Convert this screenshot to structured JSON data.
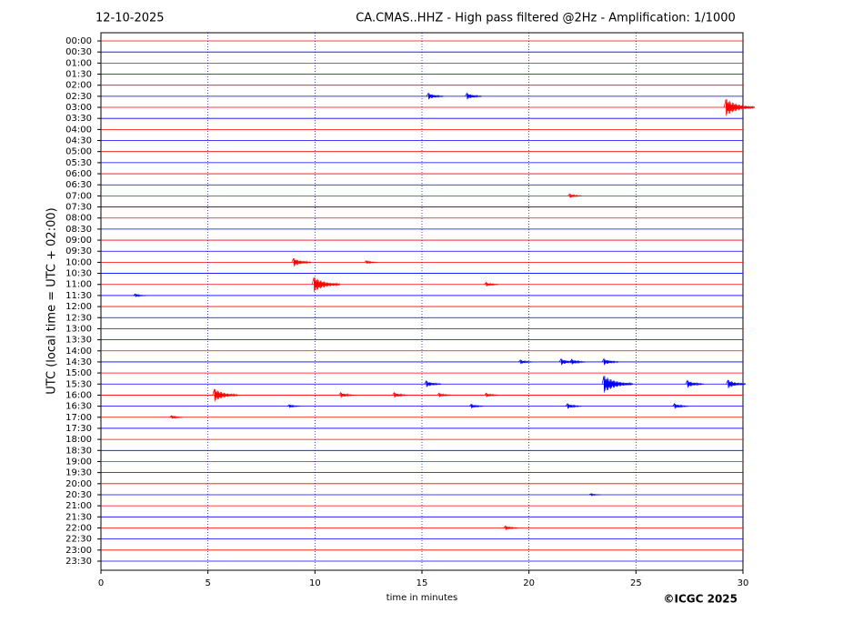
{
  "chart_data": {
    "type": "helicorder",
    "date": "12-10-2025",
    "title": "CA.CMAS..HHZ - High pass filtered @2Hz - Amplification: 1/1000",
    "y_label": "UTC (local time = UTC + 02:00)",
    "x_label": "time in minutes",
    "copyright": "©ICGC 2025",
    "categories": [
      "00:00",
      "00:30",
      "01:00",
      "01:30",
      "02:00",
      "02:30",
      "03:00",
      "03:30",
      "04:00",
      "04:30",
      "05:00",
      "05:30",
      "06:00",
      "06:30",
      "07:00",
      "07:30",
      "08:00",
      "08:30",
      "09:00",
      "09:30",
      "10:00",
      "10:30",
      "11:00",
      "11:30",
      "12:00",
      "12:30",
      "13:00",
      "13:30",
      "14:00",
      "14:30",
      "15:00",
      "15:30",
      "16:00",
      "16:30",
      "17:00",
      "17:30",
      "18:00",
      "18:30",
      "19:00",
      "19:30",
      "20:00",
      "20:30",
      "21:00",
      "21:30",
      "22:00",
      "22:30",
      "23:00",
      "23:30"
    ],
    "colors": [
      "#ff0000",
      "#0000ff"
    ],
    "xlim": [
      0,
      30
    ],
    "xticks": [
      0,
      5,
      10,
      15,
      20,
      25,
      30
    ],
    "grid": true,
    "events": [
      {
        "row": 5,
        "x": 15.3,
        "amplitude": 0.3
      },
      {
        "row": 5,
        "x": 17.1,
        "amplitude": 0.3
      },
      {
        "row": 6,
        "x": 29.2,
        "amplitude": 0.8
      },
      {
        "row": 14,
        "x": 21.9,
        "amplitude": 0.2
      },
      {
        "row": 20,
        "x": 9.0,
        "amplitude": 0.4
      },
      {
        "row": 20,
        "x": 12.4,
        "amplitude": 0.15
      },
      {
        "row": 22,
        "x": 9.95,
        "amplitude": 0.7
      },
      {
        "row": 22,
        "x": 18.0,
        "amplitude": 0.2
      },
      {
        "row": 23,
        "x": 1.6,
        "amplitude": 0.15
      },
      {
        "row": 29,
        "x": 19.6,
        "amplitude": 0.2
      },
      {
        "row": 29,
        "x": 21.5,
        "amplitude": 0.3
      },
      {
        "row": 29,
        "x": 22.0,
        "amplitude": 0.25
      },
      {
        "row": 29,
        "x": 23.5,
        "amplitude": 0.3
      },
      {
        "row": 31,
        "x": 15.2,
        "amplitude": 0.3
      },
      {
        "row": 31,
        "x": 23.5,
        "amplitude": 0.8
      },
      {
        "row": 31,
        "x": 27.4,
        "amplitude": 0.35
      },
      {
        "row": 31,
        "x": 29.3,
        "amplitude": 0.4
      },
      {
        "row": 32,
        "x": 5.3,
        "amplitude": 0.6
      },
      {
        "row": 32,
        "x": 11.2,
        "amplitude": 0.25
      },
      {
        "row": 32,
        "x": 13.7,
        "amplitude": 0.25
      },
      {
        "row": 32,
        "x": 15.8,
        "amplitude": 0.2
      },
      {
        "row": 32,
        "x": 18.0,
        "amplitude": 0.2
      },
      {
        "row": 33,
        "x": 8.8,
        "amplitude": 0.15
      },
      {
        "row": 33,
        "x": 17.3,
        "amplitude": 0.2
      },
      {
        "row": 33,
        "x": 21.8,
        "amplitude": 0.25
      },
      {
        "row": 33,
        "x": 26.8,
        "amplitude": 0.25
      },
      {
        "row": 34,
        "x": 3.3,
        "amplitude": 0.15
      },
      {
        "row": 41,
        "x": 22.9,
        "amplitude": 0.1
      },
      {
        "row": 44,
        "x": 18.9,
        "amplitude": 0.2
      }
    ]
  }
}
